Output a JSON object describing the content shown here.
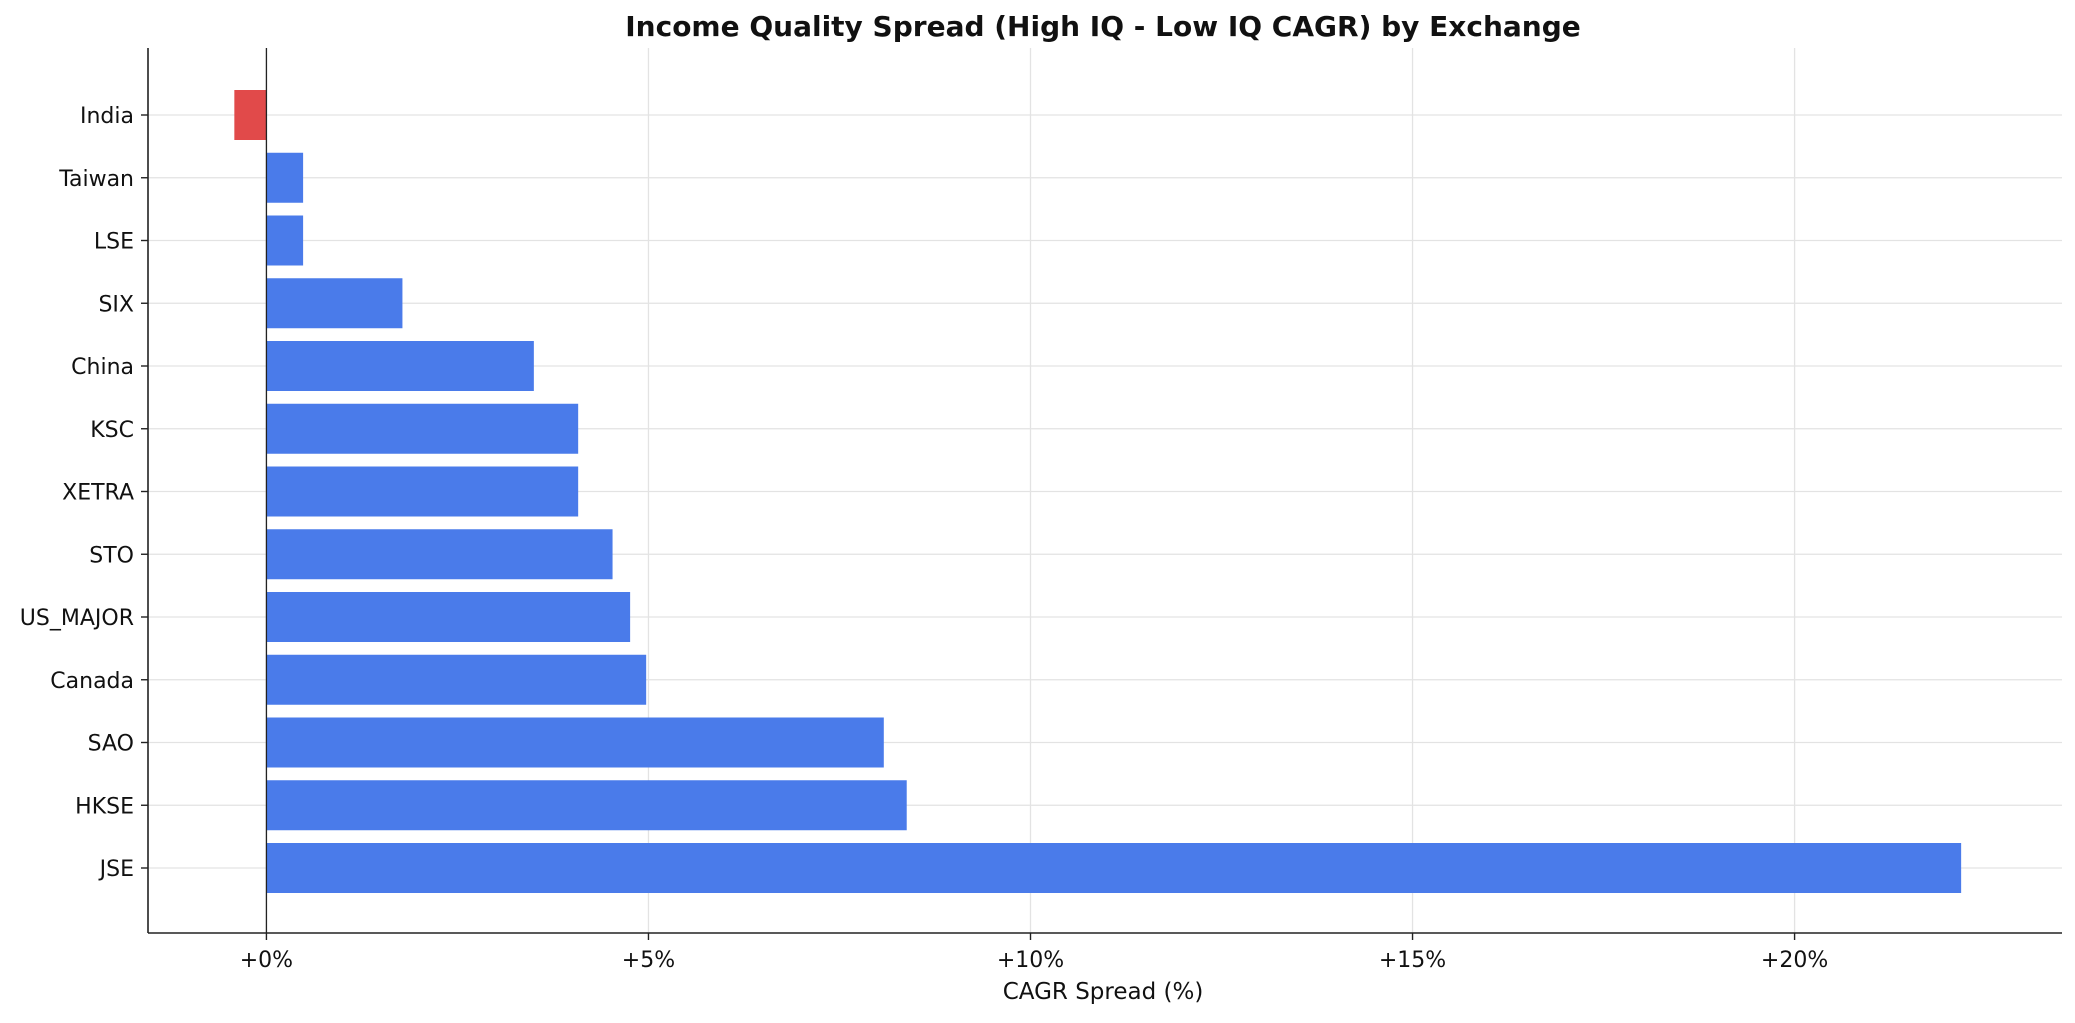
{
  "chart_data": {
    "type": "bar",
    "orientation": "horizontal",
    "title": "Income Quality Spread (High IQ - Low IQ CAGR) by Exchange",
    "xlabel": "CAGR Spread (%)",
    "ylabel": "",
    "categories": [
      "India",
      "Taiwan",
      "LSE",
      "SIX",
      "China",
      "KSC",
      "XETRA",
      "STO",
      "US_MAJOR",
      "Canada",
      "SAO",
      "HKSE",
      "JSE"
    ],
    "values": [
      -0.42,
      0.48,
      0.48,
      1.78,
      3.5,
      4.08,
      4.08,
      4.53,
      4.76,
      4.97,
      8.08,
      8.38,
      22.18
    ],
    "xlim": [
      -1.55,
      23.5
    ],
    "xticks": [
      0,
      5,
      10,
      15,
      20
    ],
    "xtick_labels": [
      "+0%",
      "+5%",
      "+10%",
      "+15%",
      "+20%"
    ],
    "grid": true,
    "colors": {
      "positive": "#4a7bea",
      "negative": "#e14a4a"
    }
  }
}
